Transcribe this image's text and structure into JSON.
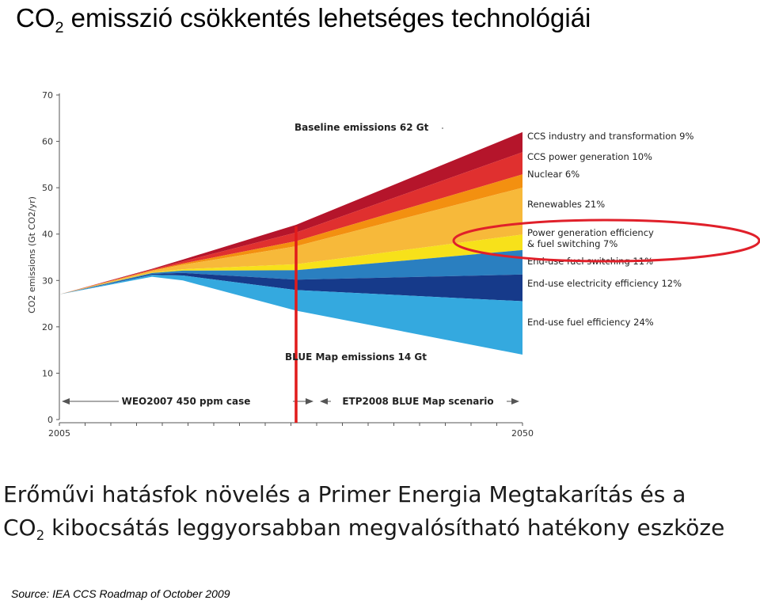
{
  "slide": {
    "title_pre": "CO",
    "title_sub": "2",
    "title_post": " emisszió csökkentés lehetséges technológiái",
    "caption_line1": "Erőművi hatásfok növelés a Primer Energia Megtakarítás és a",
    "caption_line2_pre": "CO",
    "caption_line2_sub": "2",
    "caption_line2_post": " kibocsátás leggyorsabban megvalósítható hatékony eszköze",
    "source": "Source: IEA CCS Roadmap of October 2009"
  },
  "chart_data": {
    "type": "area",
    "ylabel": "CO2 emissions (Gt CO2/yr)",
    "ylim": [
      0,
      70
    ],
    "yticks": [
      "0",
      "10",
      "20",
      "30",
      "40",
      "50",
      "60",
      "70"
    ],
    "xlim": [
      2005,
      2050
    ],
    "xticks": [
      "2005",
      "2050"
    ],
    "baseline_label": "Baseline emissions 62 Gt",
    "bluemap_label": "BLUE Map emissions 14 Gt",
    "period_labels": [
      "WEO2007 450 ppm case",
      "ETP2008 BLUE Map scenario"
    ],
    "divider_year": 2028,
    "highlight_label": "Power generation efficiency & fuel switching 7%",
    "x": [
      2005,
      2014,
      2017,
      2028,
      2050
    ],
    "baseline": [
      27,
      32.5,
      34.5,
      42,
      62
    ],
    "bluemap": [
      27,
      30.8,
      30,
      23.5,
      14
    ],
    "series": [
      {
        "name": "CCS industry and transformation 9%",
        "share": 9,
        "color": "#b5152b"
      },
      {
        "name": "CCS power generation 10%",
        "share": 10,
        "color": "#e0302f"
      },
      {
        "name": "Nuclear 6%",
        "share": 6,
        "color": "#f39010"
      },
      {
        "name": "Renewables 21%",
        "share": 21,
        "color": "#f7b93a"
      },
      {
        "name": "Power generation efficiency",
        "name2": "& fuel switching 7%",
        "share": 7,
        "color": "#f7e11a"
      },
      {
        "name": "End-use fuel switching 11%",
        "share": 11,
        "color": "#2a7fc0"
      },
      {
        "name": "End-use electricity efficiency 12%",
        "share": 12,
        "color": "#163a8a"
      },
      {
        "name": "End-use fuel efficiency 24%",
        "share": 24,
        "color": "#34a9df"
      }
    ]
  }
}
